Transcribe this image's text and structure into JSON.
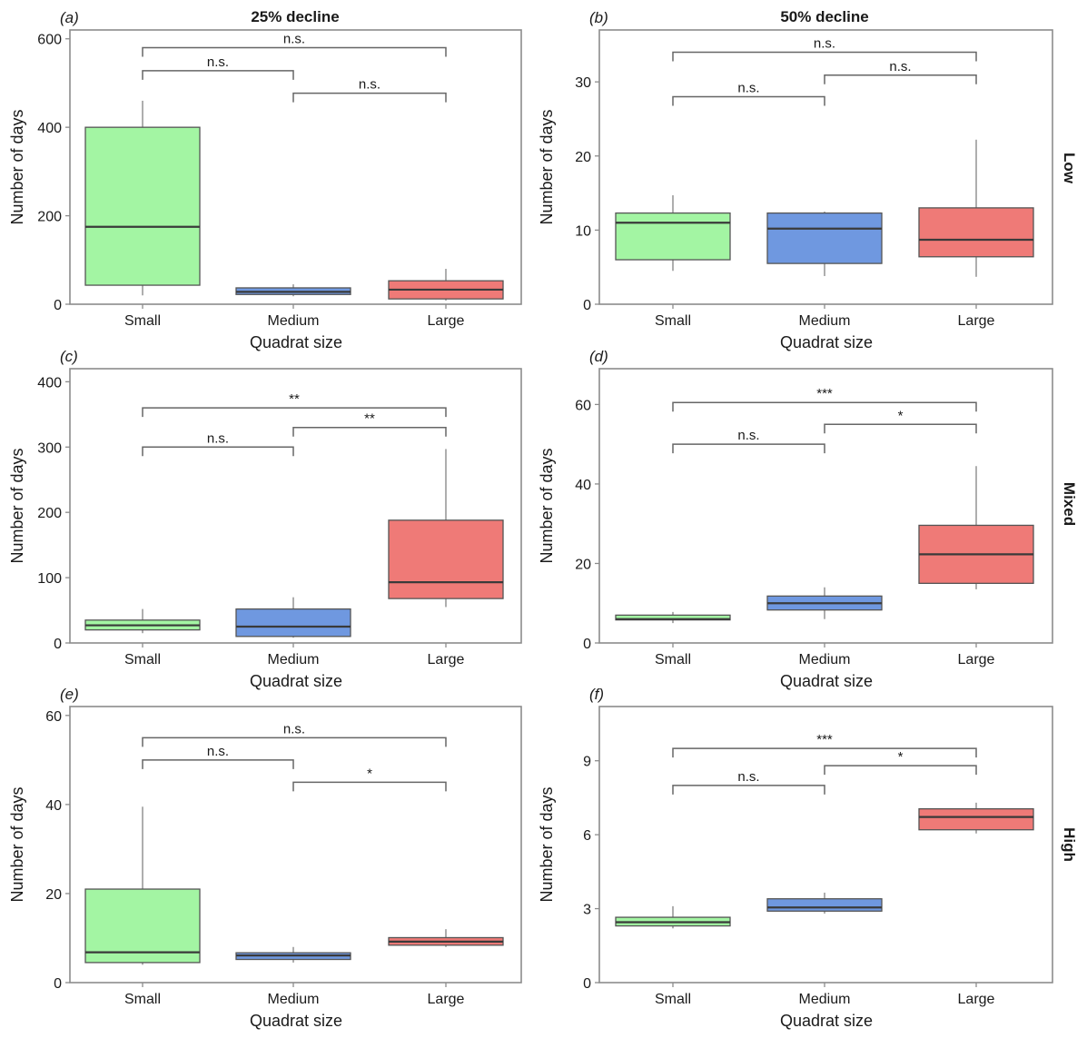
{
  "colors": {
    "small": "#a3f5a3",
    "medium": "#6f98e0",
    "large": "#ef7a77",
    "median": "#3a3a3a",
    "whisker": "#8c8c8c",
    "frame": "#8c8c8c",
    "bracket": "#666666"
  },
  "column_titles": [
    "25% decline",
    "50% decline"
  ],
  "row_titles": [
    "Low",
    "Mixed",
    "High"
  ],
  "chart_data": [
    {
      "id": "a",
      "label": "(a)",
      "type": "box",
      "col": 0,
      "row": 0,
      "categories": [
        "Small",
        "Medium",
        "Large"
      ],
      "xlabel": "Quadrat size",
      "ylabel": "Number of days",
      "ylim": [
        0,
        620
      ],
      "yticks": [
        0,
        200,
        400,
        600
      ],
      "boxes": [
        {
          "category": "Small",
          "whisker_low": 20,
          "q1": 43,
          "median": 175,
          "q3": 400,
          "whisker_high": 460
        },
        {
          "category": "Medium",
          "whisker_low": 18,
          "q1": 22,
          "median": 28,
          "q3": 37,
          "whisker_high": 45
        },
        {
          "category": "Large",
          "whisker_low": 8,
          "q1": 12,
          "median": 33,
          "q3": 53,
          "whisker_high": 80
        }
      ],
      "comparisons": [
        {
          "from": "Small",
          "to": "Large",
          "y": 580,
          "label": "n.s."
        },
        {
          "from": "Small",
          "to": "Medium",
          "y": 528,
          "label": "n.s."
        },
        {
          "from": "Medium",
          "to": "Large",
          "y": 477,
          "label": "n.s."
        }
      ]
    },
    {
      "id": "b",
      "label": "(b)",
      "type": "box",
      "col": 1,
      "row": 0,
      "categories": [
        "Small",
        "Medium",
        "Large"
      ],
      "xlabel": "Quadrat size",
      "ylabel": "Number of days",
      "ylim": [
        0,
        37
      ],
      "yticks": [
        0,
        10,
        20,
        30
      ],
      "boxes": [
        {
          "category": "Small",
          "whisker_low": 4.5,
          "q1": 6,
          "median": 11,
          "q3": 12.3,
          "whisker_high": 14.7
        },
        {
          "category": "Medium",
          "whisker_low": 3.8,
          "q1": 5.5,
          "median": 10.2,
          "q3": 12.3,
          "whisker_high": 12.5
        },
        {
          "category": "Large",
          "whisker_low": 3.7,
          "q1": 6.4,
          "median": 8.7,
          "q3": 13,
          "whisker_high": 22.2
        }
      ],
      "comparisons": [
        {
          "from": "Small",
          "to": "Large",
          "y": 34,
          "label": "n.s."
        },
        {
          "from": "Medium",
          "to": "Large",
          "y": 30.9,
          "label": "n.s."
        },
        {
          "from": "Small",
          "to": "Medium",
          "y": 28,
          "label": "n.s."
        }
      ]
    },
    {
      "id": "c",
      "label": "(c)",
      "type": "box",
      "col": 0,
      "row": 1,
      "categories": [
        "Small",
        "Medium",
        "Large"
      ],
      "xlabel": "Quadrat size",
      "ylabel": "Number of days",
      "ylim": [
        0,
        420
      ],
      "yticks": [
        0,
        100,
        200,
        300,
        400
      ],
      "boxes": [
        {
          "category": "Small",
          "whisker_low": 15,
          "q1": 20,
          "median": 27,
          "q3": 35,
          "whisker_high": 52
        },
        {
          "category": "Medium",
          "whisker_low": 8,
          "q1": 10,
          "median": 25,
          "q3": 52,
          "whisker_high": 70
        },
        {
          "category": "Large",
          "whisker_low": 55,
          "q1": 68,
          "median": 93,
          "q3": 188,
          "whisker_high": 297
        }
      ],
      "comparisons": [
        {
          "from": "Small",
          "to": "Large",
          "y": 360,
          "label": "**"
        },
        {
          "from": "Medium",
          "to": "Large",
          "y": 330,
          "label": "**"
        },
        {
          "from": "Small",
          "to": "Medium",
          "y": 300,
          "label": "n.s."
        }
      ]
    },
    {
      "id": "d",
      "label": "(d)",
      "type": "box",
      "col": 1,
      "row": 1,
      "categories": [
        "Small",
        "Medium",
        "Large"
      ],
      "xlabel": "Quadrat size",
      "ylabel": "Number of days",
      "ylim": [
        0,
        69
      ],
      "yticks": [
        0,
        20,
        40,
        60
      ],
      "boxes": [
        {
          "category": "Small",
          "whisker_low": 5,
          "q1": 5.8,
          "median": 6,
          "q3": 7,
          "whisker_high": 7.8
        },
        {
          "category": "Medium",
          "whisker_low": 6,
          "q1": 8.3,
          "median": 10,
          "q3": 11.8,
          "whisker_high": 14
        },
        {
          "category": "Large",
          "whisker_low": 13.5,
          "q1": 15,
          "median": 22.3,
          "q3": 29.6,
          "whisker_high": 44.5
        }
      ],
      "comparisons": [
        {
          "from": "Small",
          "to": "Large",
          "y": 60.5,
          "label": "***"
        },
        {
          "from": "Medium",
          "to": "Large",
          "y": 55,
          "label": "*"
        },
        {
          "from": "Small",
          "to": "Medium",
          "y": 50,
          "label": "n.s."
        }
      ]
    },
    {
      "id": "e",
      "label": "(e)",
      "type": "box",
      "col": 0,
      "row": 2,
      "categories": [
        "Small",
        "Medium",
        "Large"
      ],
      "xlabel": "Quadrat size",
      "ylabel": "Number of days",
      "ylim": [
        0,
        62
      ],
      "yticks": [
        0,
        20,
        40,
        60
      ],
      "boxes": [
        {
          "category": "Small",
          "whisker_low": 4,
          "q1": 4.5,
          "median": 6.8,
          "q3": 21,
          "whisker_high": 39.5
        },
        {
          "category": "Medium",
          "whisker_low": 4.5,
          "q1": 5.2,
          "median": 6.1,
          "q3": 6.7,
          "whisker_high": 8
        },
        {
          "category": "Large",
          "whisker_low": 8,
          "q1": 8.4,
          "median": 9.2,
          "q3": 10.1,
          "whisker_high": 12
        }
      ],
      "comparisons": [
        {
          "from": "Small",
          "to": "Large",
          "y": 55,
          "label": "n.s."
        },
        {
          "from": "Small",
          "to": "Medium",
          "y": 50,
          "label": "n.s."
        },
        {
          "from": "Medium",
          "to": "Large",
          "y": 45,
          "label": "*"
        }
      ]
    },
    {
      "id": "f",
      "label": "(f)",
      "type": "box",
      "col": 1,
      "row": 2,
      "categories": [
        "Small",
        "Medium",
        "Large"
      ],
      "xlabel": "Quadrat size",
      "ylabel": "Number of days",
      "ylim": [
        0,
        11.2
      ],
      "yticks": [
        0,
        3,
        6,
        9
      ],
      "boxes": [
        {
          "category": "Small",
          "whisker_low": 2.2,
          "q1": 2.3,
          "median": 2.45,
          "q3": 2.65,
          "whisker_high": 3.1
        },
        {
          "category": "Medium",
          "whisker_low": 2.8,
          "q1": 2.9,
          "median": 3.05,
          "q3": 3.4,
          "whisker_high": 3.65
        },
        {
          "category": "Large",
          "whisker_low": 6.05,
          "q1": 6.2,
          "median": 6.72,
          "q3": 7.05,
          "whisker_high": 7.3
        }
      ],
      "comparisons": [
        {
          "from": "Small",
          "to": "Large",
          "y": 9.5,
          "label": "***"
        },
        {
          "from": "Medium",
          "to": "Large",
          "y": 8.8,
          "label": "*"
        },
        {
          "from": "Small",
          "to": "Medium",
          "y": 8.0,
          "label": "n.s."
        }
      ]
    }
  ]
}
